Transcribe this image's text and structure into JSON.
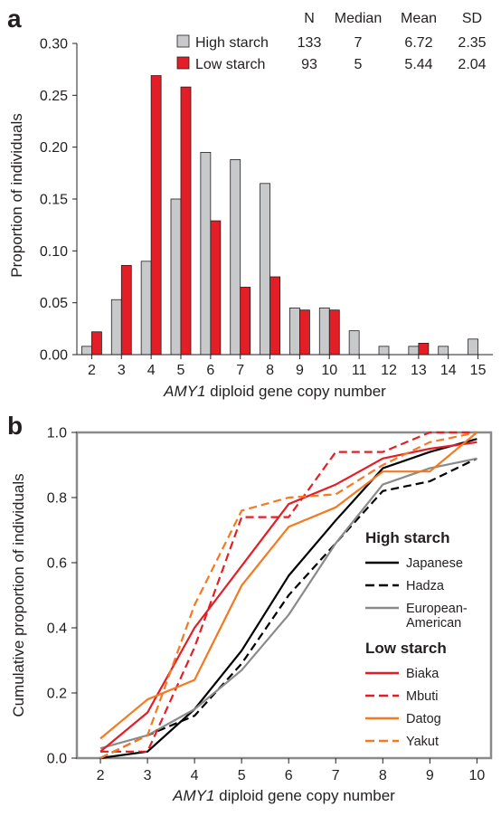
{
  "panels": {
    "a_label": "a",
    "b_label": "b"
  },
  "stats": {
    "headers": [
      "N",
      "Median",
      "Mean",
      "SD"
    ],
    "rows": [
      {
        "name": "High starch",
        "values": [
          "133",
          "7",
          "6.72",
          "2.35"
        ],
        "color": "#c8c9cb"
      },
      {
        "name": "Low starch",
        "values": [
          "93",
          "5",
          "5.44",
          "2.04"
        ],
        "color": "#e31e26"
      }
    ]
  },
  "chart_data": [
    {
      "type": "bar",
      "xlabel_italic": "AMY1",
      "xlabel_rest": " diploid gene copy number",
      "ylabel": "Proportion of individuals",
      "ylim": [
        0,
        0.3
      ],
      "yticks": [
        "0.00",
        "0.05",
        "0.10",
        "0.15",
        "0.20",
        "0.25",
        "0.30"
      ],
      "categories": [
        "2",
        "3",
        "4",
        "5",
        "6",
        "7",
        "8",
        "9",
        "10",
        "11",
        "12",
        "13",
        "14",
        "15"
      ],
      "series": [
        {
          "name": "High starch",
          "color": "#c8c9cb",
          "values": [
            0.008,
            0.053,
            0.09,
            0.15,
            0.195,
            0.188,
            0.165,
            0.045,
            0.045,
            0.023,
            0.008,
            0.008,
            0.008,
            0.015
          ]
        },
        {
          "name": "Low starch",
          "color": "#e31e26",
          "values": [
            0.022,
            0.086,
            0.269,
            0.258,
            0.129,
            0.065,
            0.075,
            0.043,
            0.043,
            0.0,
            0.0,
            0.011,
            0.0,
            0.0
          ]
        }
      ]
    },
    {
      "type": "line",
      "xlabel_italic": "AMY1",
      "xlabel_rest": " diploid gene copy number",
      "ylabel": "Cumulative proportion of individuals",
      "xlim": [
        1.5,
        10.3
      ],
      "ylim": [
        0,
        1.0
      ],
      "x": [
        2,
        3,
        4,
        5,
        6,
        7,
        8,
        9,
        10
      ],
      "xticks": [
        "2",
        "3",
        "4",
        "5",
        "6",
        "7",
        "8",
        "9",
        "10"
      ],
      "yticks": [
        "0.0",
        "0.2",
        "0.4",
        "0.6",
        "0.8",
        "1.0"
      ],
      "legend_groups": [
        {
          "title": "High starch",
          "entries": [
            {
              "name": "Japanese",
              "color": "#000000",
              "dash": false
            },
            {
              "name": "Hadza",
              "color": "#000000",
              "dash": true
            },
            {
              "name": "European-",
              "name2": "American",
              "color": "#8a8a8a",
              "dash": false
            }
          ]
        },
        {
          "title": "Low starch",
          "entries": [
            {
              "name": "Biaka",
              "color": "#e31e26",
              "dash": false
            },
            {
              "name": "Mbuti",
              "color": "#e31e26",
              "dash": true
            },
            {
              "name": "Datog",
              "color": "#f47920",
              "dash": false
            },
            {
              "name": "Yakut",
              "color": "#f47920",
              "dash": true
            }
          ]
        }
      ],
      "series": [
        {
          "name": "Japanese",
          "color": "#000000",
          "dash": false,
          "values": [
            0.0,
            0.02,
            0.15,
            0.33,
            0.56,
            0.73,
            0.89,
            0.94,
            0.98
          ]
        },
        {
          "name": "Hadza",
          "color": "#000000",
          "dash": true,
          "values": [
            0.0,
            0.07,
            0.13,
            0.29,
            0.5,
            0.66,
            0.82,
            0.85,
            0.92
          ]
        },
        {
          "name": "European-American",
          "color": "#8a8a8a",
          "dash": false,
          "values": [
            0.03,
            0.07,
            0.15,
            0.27,
            0.44,
            0.66,
            0.84,
            0.89,
            0.92
          ]
        },
        {
          "name": "Biaka",
          "color": "#e31e26",
          "dash": false,
          "values": [
            0.02,
            0.14,
            0.4,
            0.59,
            0.78,
            0.84,
            0.92,
            0.95,
            0.97
          ]
        },
        {
          "name": "Mbuti",
          "color": "#e31e26",
          "dash": true,
          "values": [
            0.02,
            0.02,
            0.34,
            0.74,
            0.74,
            0.94,
            0.94,
            1.0,
            1.0
          ]
        },
        {
          "name": "Datog",
          "color": "#f47920",
          "dash": false,
          "values": [
            0.06,
            0.18,
            0.24,
            0.53,
            0.71,
            0.77,
            0.88,
            0.88,
            1.0
          ]
        },
        {
          "name": "Yakut",
          "color": "#f47920",
          "dash": true,
          "values": [
            0.0,
            0.07,
            0.47,
            0.76,
            0.8,
            0.81,
            0.9,
            0.97,
            1.0
          ]
        }
      ]
    }
  ]
}
